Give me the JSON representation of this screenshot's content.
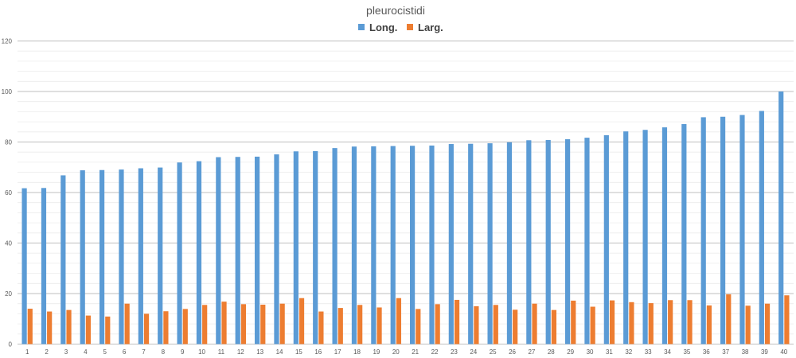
{
  "chart_data": {
    "type": "bar",
    "title": "pleurocistidi",
    "xlabel": "",
    "ylabel": "",
    "ylim": [
      0,
      120
    ],
    "major_ticks": [
      0,
      20,
      40,
      60,
      80,
      100,
      120
    ],
    "minor_step": 4,
    "grid": true,
    "legend_position": "top-center",
    "categories": [
      "1",
      "2",
      "3",
      "4",
      "5",
      "6",
      "7",
      "8",
      "9",
      "10",
      "11",
      "12",
      "13",
      "14",
      "15",
      "16",
      "17",
      "18",
      "19",
      "20",
      "21",
      "22",
      "23",
      "24",
      "25",
      "26",
      "27",
      "28",
      "29",
      "30",
      "31",
      "32",
      "33",
      "34",
      "35",
      "36",
      "37",
      "38",
      "39",
      "40"
    ],
    "series": [
      {
        "name": "Long.",
        "color": "#5b9bd5",
        "values": [
          61.7,
          61.8,
          66.8,
          68.8,
          68.9,
          69.1,
          69.6,
          69.9,
          71.9,
          72.4,
          74.0,
          74.1,
          74.2,
          75.1,
          76.3,
          76.4,
          77.6,
          78.2,
          78.3,
          78.4,
          78.5,
          78.6,
          79.2,
          79.3,
          79.5,
          79.9,
          80.7,
          80.8,
          81.1,
          81.7,
          82.7,
          84.2,
          84.8,
          85.8,
          87.1,
          89.8,
          90.0,
          90.7,
          92.3,
          100.0
        ]
      },
      {
        "name": "Larg.",
        "color": "#ed7d31",
        "values": [
          14.0,
          12.9,
          13.5,
          11.3,
          10.9,
          16.0,
          12.0,
          13.0,
          13.9,
          15.5,
          16.8,
          15.8,
          15.6,
          16.0,
          18.2,
          12.9,
          14.3,
          15.5,
          14.5,
          18.2,
          13.9,
          15.8,
          17.5,
          15.0,
          15.5,
          13.6,
          16.0,
          13.5,
          17.2,
          14.8,
          17.3,
          16.6,
          16.2,
          17.4,
          17.4,
          15.3,
          19.7,
          15.2,
          16.0,
          19.3
        ]
      }
    ]
  }
}
